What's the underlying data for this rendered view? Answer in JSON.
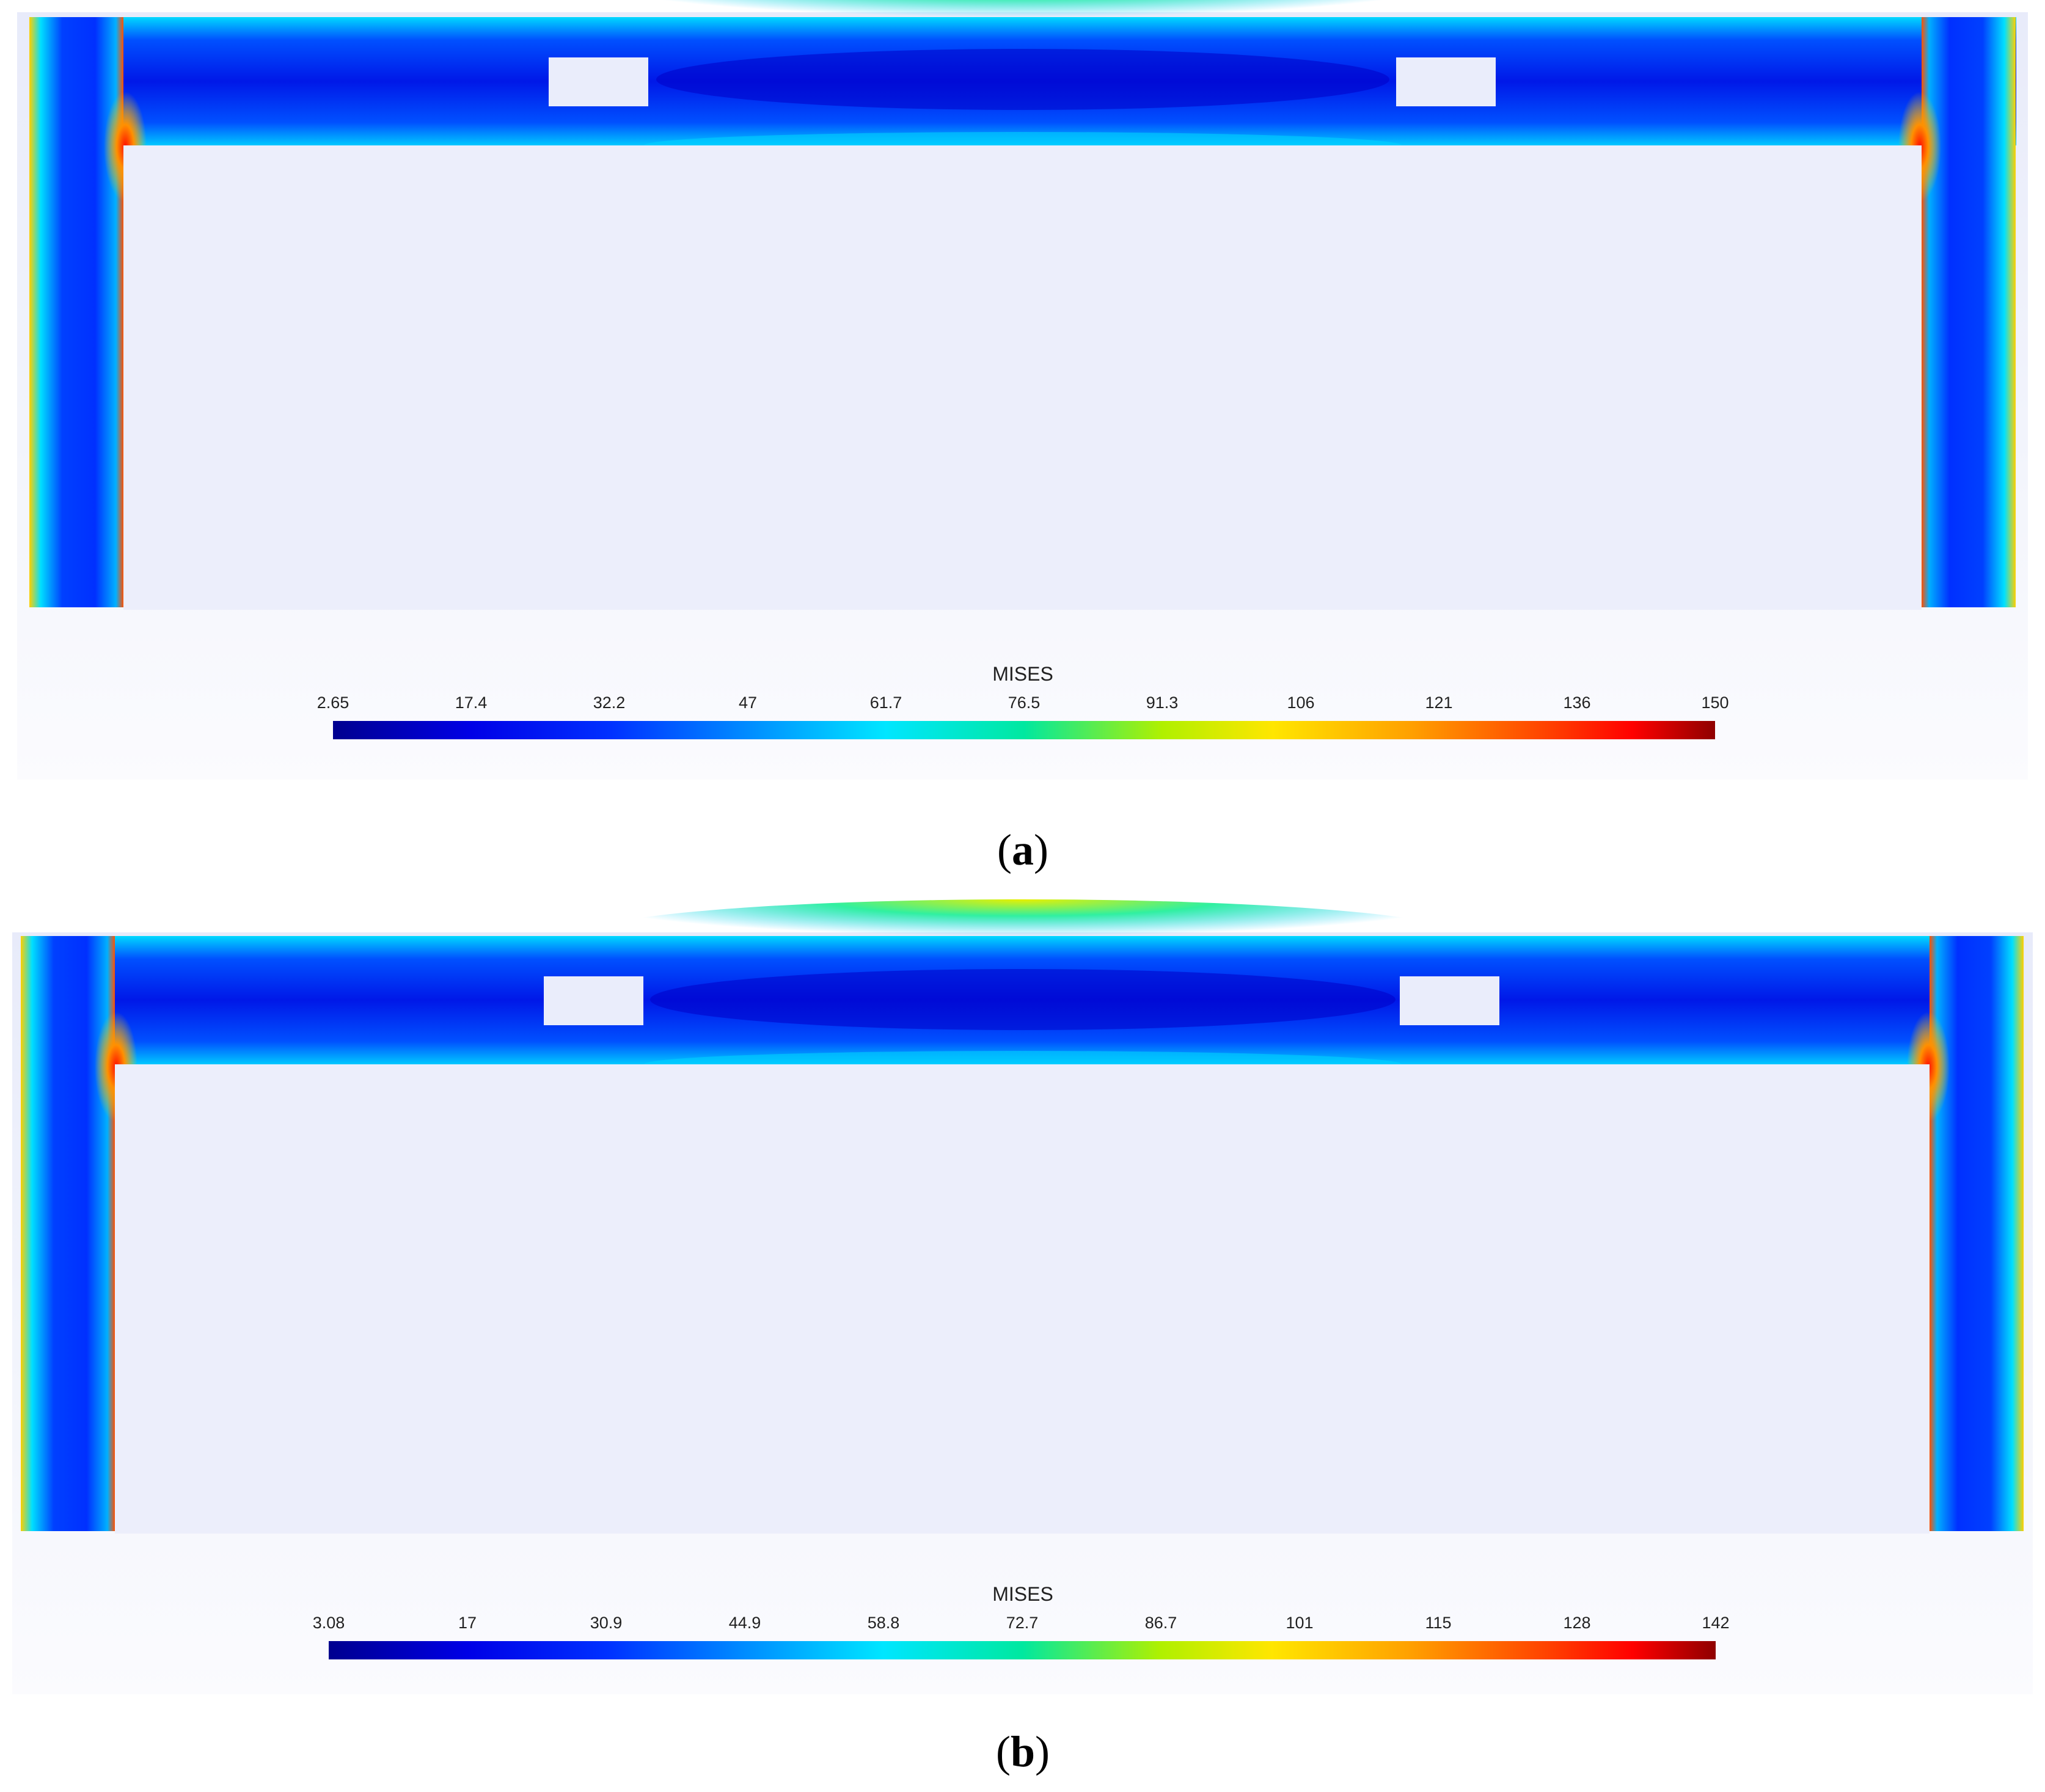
{
  "panels": [
    {
      "id": "a",
      "legend_title": "MISES",
      "ticks": [
        "2.65",
        "17.4",
        "32.2",
        "47",
        "61.7",
        "76.5",
        "91.3",
        "106",
        "121",
        "136",
        "150"
      ],
      "caption_open": "(",
      "caption_letter": "a",
      "caption_close": ")"
    },
    {
      "id": "b",
      "legend_title": "MISES",
      "ticks": [
        "3.08",
        "17",
        "30.9",
        "44.9",
        "58.8",
        "72.7",
        "86.7",
        "101",
        "115",
        "128",
        "142"
      ],
      "caption_open": "(",
      "caption_letter": "b",
      "caption_close": ")"
    }
  ],
  "colormap": [
    "#00008f",
    "#0000e6",
    "#0030ff",
    "#008cff",
    "#00e6ff",
    "#00e8a0",
    "#b0f000",
    "#ffe600",
    "#ffa000",
    "#ff4000",
    "#ff0000",
    "#8f0000"
  ]
}
